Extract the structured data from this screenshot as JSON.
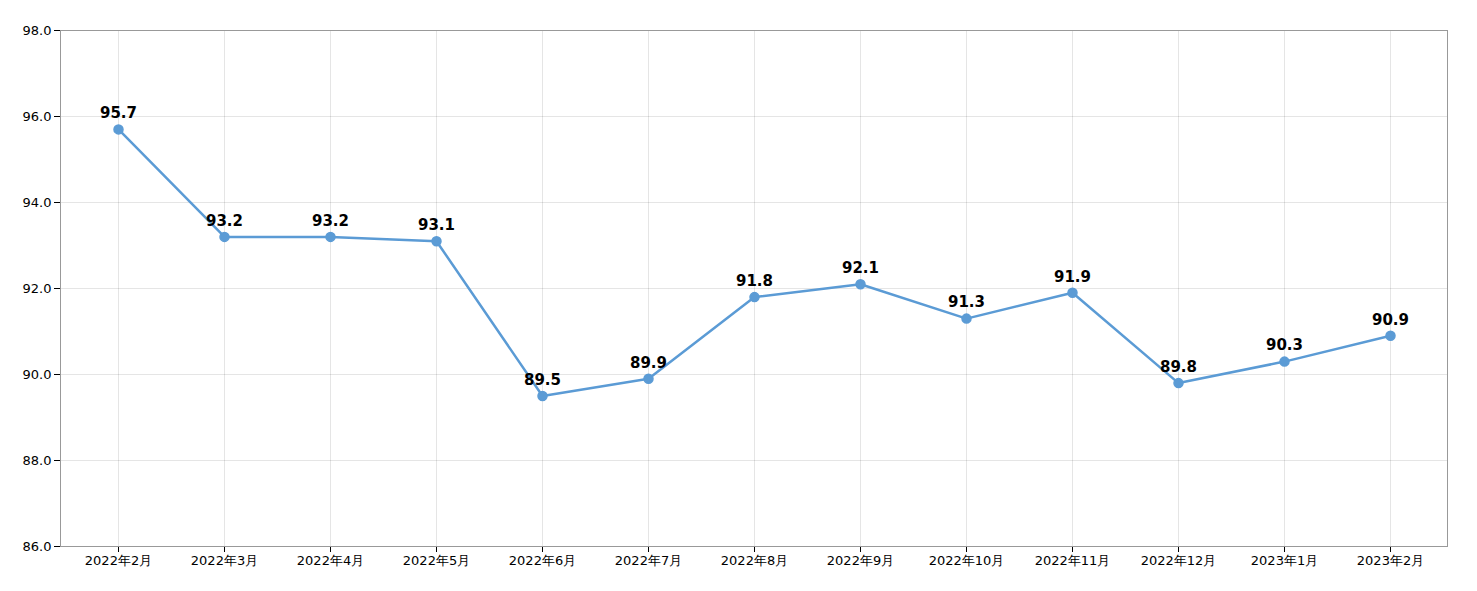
{
  "chart_data": {
    "type": "line",
    "categories": [
      "2022年2月",
      "2022年3月",
      "2022年4月",
      "2022年5月",
      "2022年6月",
      "2022年7月",
      "2022年8月",
      "2022年9月",
      "2022年10月",
      "2022年11月",
      "2022年12月",
      "2023年1月",
      "2023年2月"
    ],
    "values": [
      95.7,
      93.2,
      93.2,
      93.1,
      89.5,
      89.9,
      91.8,
      92.1,
      91.3,
      91.9,
      89.8,
      90.3,
      90.9
    ],
    "color": "#5B9BD5",
    "marker": "circle",
    "ylim": [
      86.0,
      98.0
    ],
    "yticks": [
      {
        "value": 86.0,
        "label": "86.0"
      },
      {
        "value": 88.0,
        "label": "88.0"
      },
      {
        "value": 90.0,
        "label": "90.0"
      },
      {
        "value": 92.0,
        "label": "92.0"
      },
      {
        "value": 94.0,
        "label": "94.0"
      },
      {
        "value": 96.0,
        "label": "96.0"
      },
      {
        "value": 98.0,
        "label": "98.0"
      }
    ],
    "grid": true,
    "data_labels": true
  }
}
